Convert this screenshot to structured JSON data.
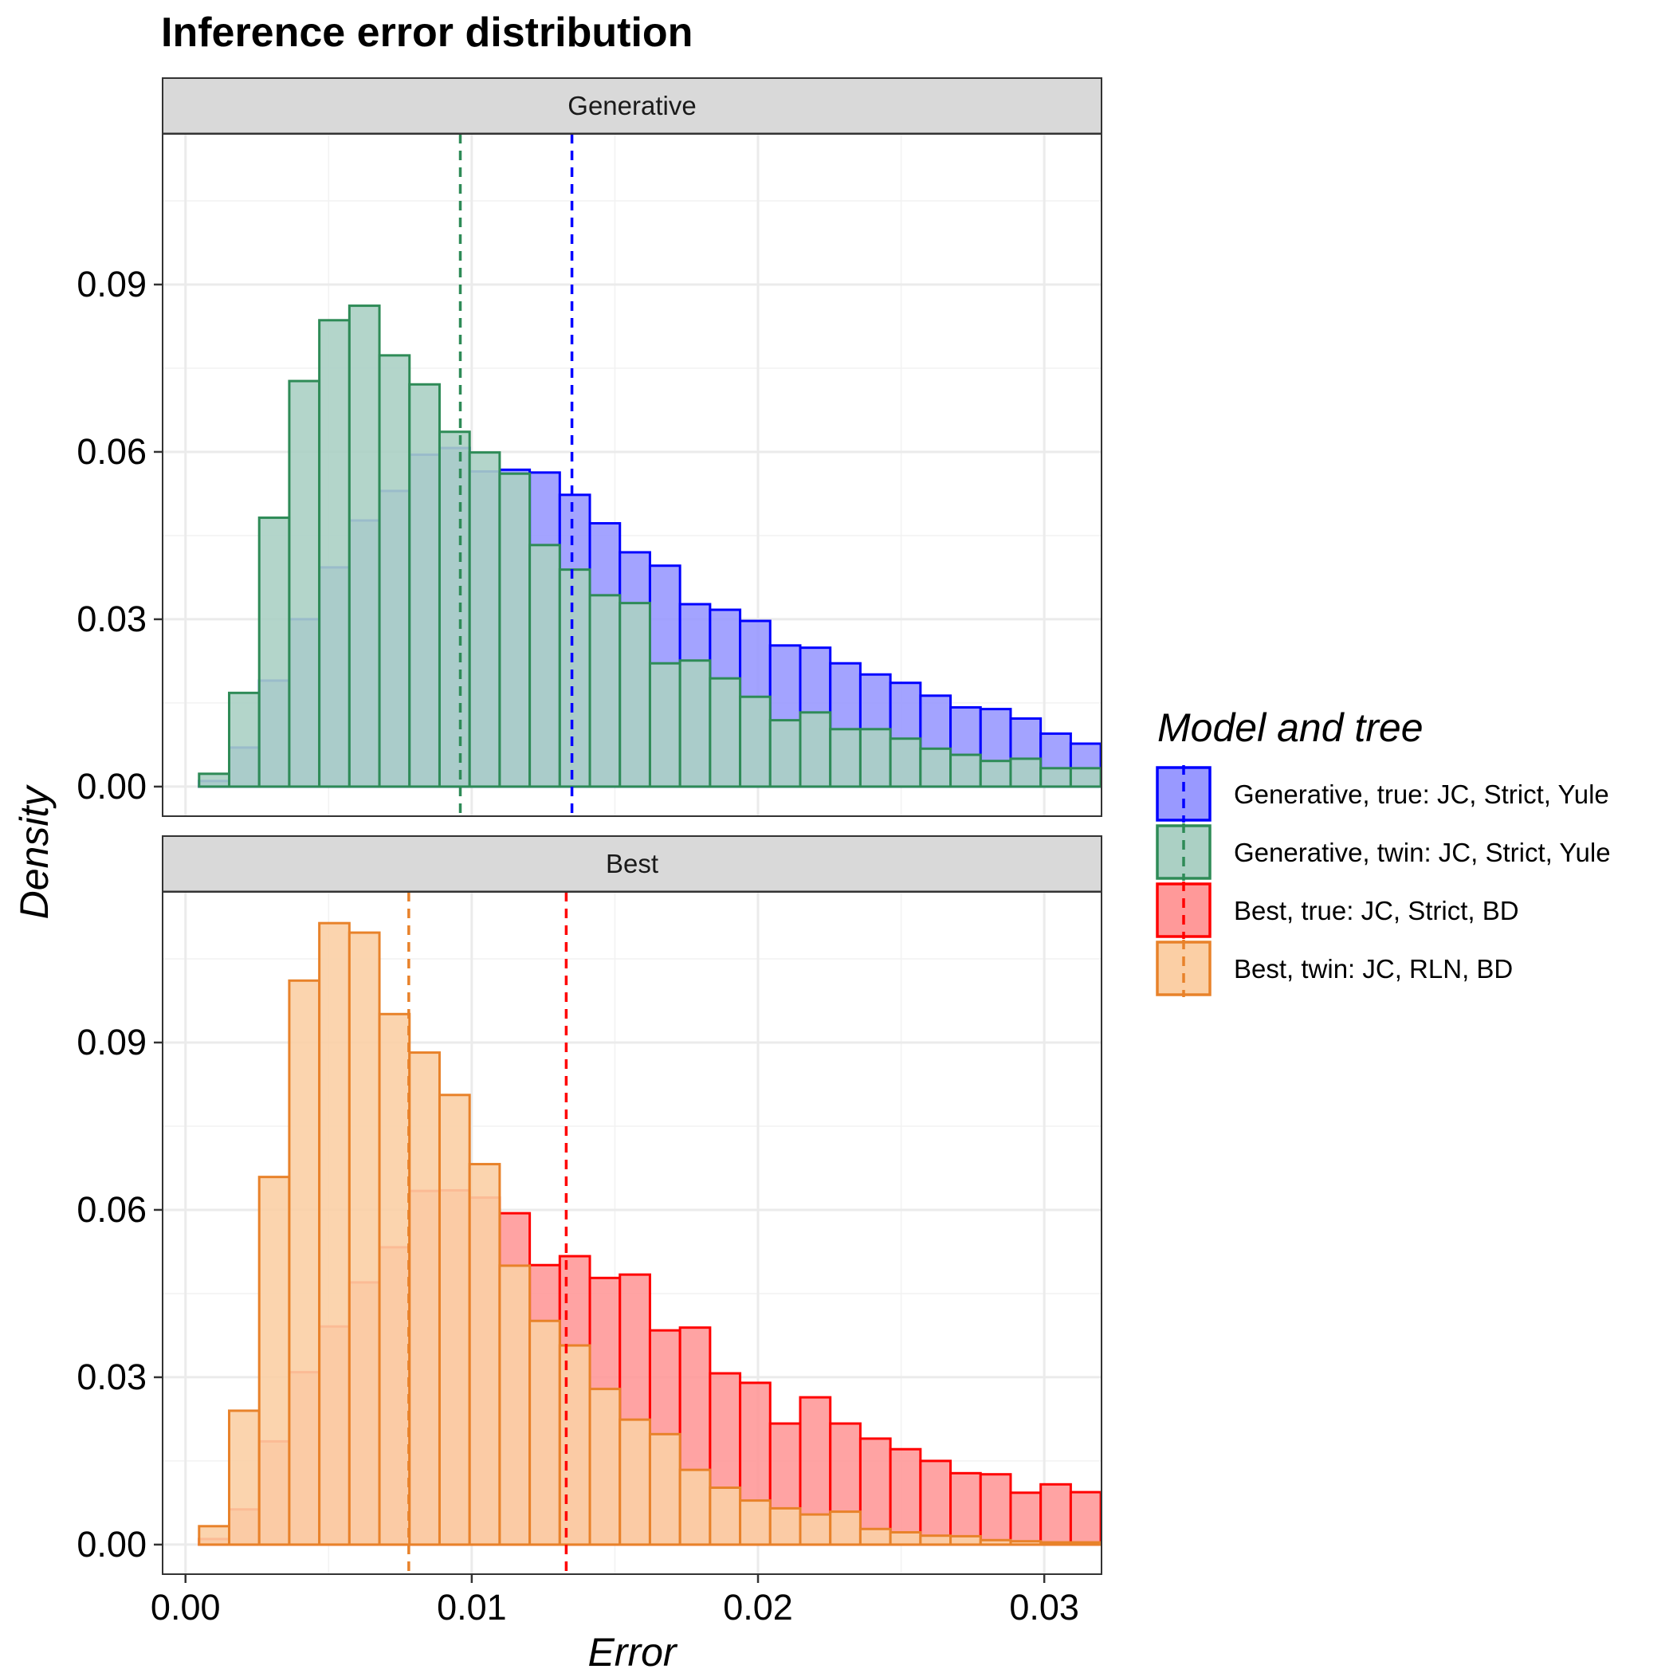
{
  "chart_data": {
    "type": "bar",
    "title": "Inference error distribution",
    "xlabel": "Error",
    "ylabel": "Density",
    "xlim": [
      -0.0008,
      0.032
    ],
    "x_ticks": [
      0,
      0.01,
      0.02,
      0.03
    ],
    "x_tick_labels": [
      "0.00",
      "0.01",
      "0.02",
      "0.03"
    ],
    "y_ticks": [
      0,
      0.03,
      0.06,
      0.09
    ],
    "y_tick_labels": [
      "0.00",
      "0.03",
      "0.06",
      "0.09"
    ],
    "grid": true,
    "bin_width": 0.00105,
    "bins": [
      0.001,
      0.00205,
      0.0031,
      0.00415,
      0.0052,
      0.00625,
      0.0073,
      0.00835,
      0.0094,
      0.01045,
      0.0115,
      0.01255,
      0.0136,
      0.01465,
      0.0157,
      0.01675,
      0.0178,
      0.01885,
      0.0199,
      0.02095,
      0.022,
      0.02305,
      0.0241,
      0.02515,
      0.0262,
      0.02725,
      0.0283,
      0.02935,
      0.0304,
      0.03145
    ],
    "legend": {
      "title": "Model and tree",
      "position": "right",
      "entries": [
        {
          "label": "Generative, true: JC, Strict, Yule",
          "color": "#0000ff",
          "fill": "#9999ff"
        },
        {
          "label": "Generative, twin: JC, Strict, Yule",
          "color": "#2e8b57",
          "fill": "#abd0c4"
        },
        {
          "label": "Best, true: JC, Strict, BD",
          "color": "#ff0000",
          "fill": "#ff9999"
        },
        {
          "label": "Best, twin: JC, RLN, BD",
          "color": "#e8822a",
          "fill": "#fbcfa5"
        }
      ]
    },
    "panels": [
      {
        "strip": "Generative",
        "ylim": [
          -0.0053,
          0.117
        ],
        "series": [
          {
            "name": "Generative, true: JC, Strict, Yule",
            "color": "#0000ff",
            "fill": "#9999ff",
            "mean": 0.0135,
            "values": [
              0.001,
              0.007,
              0.019,
              0.03,
              0.0393,
              0.0477,
              0.053,
              0.0595,
              0.0607,
              0.0565,
              0.0568,
              0.0563,
              0.0523,
              0.0472,
              0.042,
              0.0396,
              0.0327,
              0.0317,
              0.0297,
              0.0253,
              0.0249,
              0.0221,
              0.0201,
              0.0186,
              0.0163,
              0.0142,
              0.0139,
              0.0122,
              0.0095,
              0.0077
            ]
          },
          {
            "name": "Generative, twin: JC, Strict, Yule",
            "color": "#2e8b57",
            "fill": "#abd0c4",
            "mean": 0.0096,
            "values": [
              0.0023,
              0.0168,
              0.0482,
              0.0727,
              0.0836,
              0.0862,
              0.0773,
              0.0721,
              0.0636,
              0.0599,
              0.0561,
              0.0433,
              0.0389,
              0.0343,
              0.0329,
              0.0221,
              0.0226,
              0.0194,
              0.0161,
              0.0119,
              0.0133,
              0.0103,
              0.0103,
              0.0086,
              0.0068,
              0.0057,
              0.0046,
              0.005,
              0.0033,
              0.0033
            ]
          }
        ]
      },
      {
        "strip": "Best",
        "ylim": [
          -0.0053,
          0.117
        ],
        "series": [
          {
            "name": "Best, true: JC, Strict, BD",
            "color": "#ff0000",
            "fill": "#ff9999",
            "mean": 0.0133,
            "values": [
              0.001,
              0.0063,
              0.0185,
              0.0309,
              0.0391,
              0.047,
              0.0533,
              0.0634,
              0.0635,
              0.0622,
              0.0594,
              0.0501,
              0.0517,
              0.0478,
              0.0484,
              0.0384,
              0.0389,
              0.0307,
              0.029,
              0.0217,
              0.0264,
              0.0217,
              0.019,
              0.0171,
              0.015,
              0.0128,
              0.0126,
              0.0093,
              0.0108,
              0.0094
            ]
          },
          {
            "name": "Best, twin: JC, RLN, BD",
            "color": "#e8822a",
            "fill": "#fbcfa5",
            "mean": 0.0078,
            "values": [
              0.0033,
              0.024,
              0.0659,
              0.1011,
              0.1114,
              0.1097,
              0.0951,
              0.0882,
              0.0806,
              0.0682,
              0.05,
              0.0401,
              0.0357,
              0.0279,
              0.0224,
              0.0198,
              0.0134,
              0.0102,
              0.0079,
              0.0065,
              0.0054,
              0.0059,
              0.0028,
              0.0022,
              0.0016,
              0.0015,
              0.0008,
              0.0006,
              0.0004,
              0.0004
            ]
          }
        ]
      }
    ]
  }
}
